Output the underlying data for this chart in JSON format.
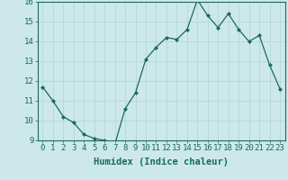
{
  "x": [
    0,
    1,
    2,
    3,
    4,
    5,
    6,
    7,
    8,
    9,
    10,
    11,
    12,
    13,
    14,
    15,
    16,
    17,
    18,
    19,
    20,
    21,
    22,
    23
  ],
  "y": [
    11.7,
    11.0,
    10.2,
    9.9,
    9.3,
    9.1,
    9.0,
    8.8,
    10.6,
    11.4,
    13.1,
    13.7,
    14.2,
    14.1,
    14.6,
    16.1,
    15.3,
    14.7,
    15.4,
    14.6,
    14.0,
    14.3,
    12.8,
    11.6
  ],
  "xlabel": "Humidex (Indice chaleur)",
  "ylim": [
    9,
    16
  ],
  "xlim": [
    -0.5,
    23.5
  ],
  "yticks": [
    9,
    10,
    11,
    12,
    13,
    14,
    15,
    16
  ],
  "xticks": [
    0,
    1,
    2,
    3,
    4,
    5,
    6,
    7,
    8,
    9,
    10,
    11,
    12,
    13,
    14,
    15,
    16,
    17,
    18,
    19,
    20,
    21,
    22,
    23
  ],
  "line_color": "#1a6b5a",
  "marker_color": "#1a6b5a",
  "bg_color": "#cce8e8",
  "grid_color": "#afd4d4",
  "axis_color": "#1a6b5a",
  "tick_label_color": "#1a6b5a",
  "xlabel_color": "#1a6b5a",
  "xlabel_fontsize": 7.5,
  "tick_fontsize": 6.5
}
